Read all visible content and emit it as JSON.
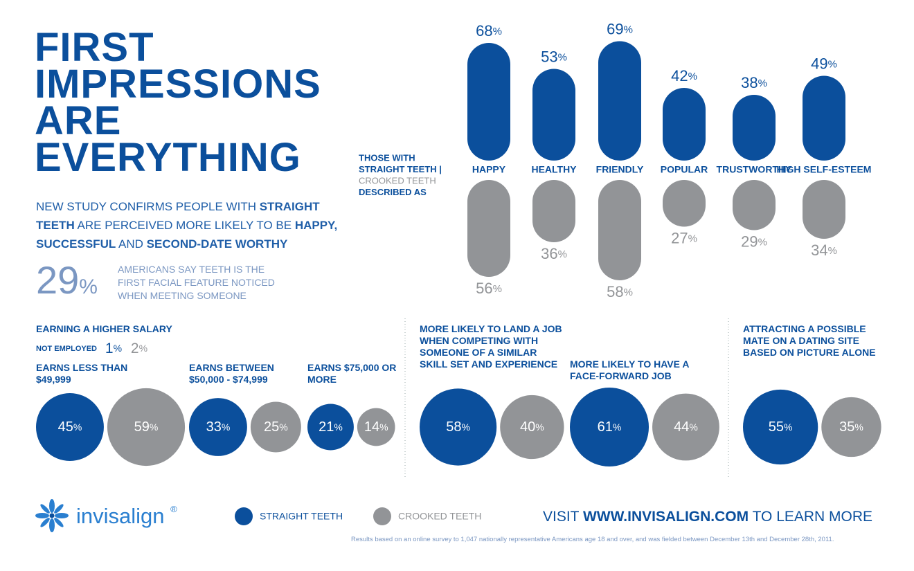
{
  "header": {
    "title_lines": [
      "FIRST",
      "IMPRESSIONS",
      "ARE",
      "EVERYTHING"
    ],
    "subtitle": [
      {
        "text": "NEW STUDY CONFIRMS PEOPLE WITH ",
        "bold": false
      },
      {
        "text": "STRAIGHT TEETH",
        "bold": true
      },
      {
        "text": " ARE PERCEIVED MORE LIKELY TO BE ",
        "bold": false
      },
      {
        "text": "HAPPY, SUCCESSFUL",
        "bold": true
      },
      {
        "text": " AND ",
        "bold": false
      },
      {
        "text": "SECOND-DATE WORTHY",
        "bold": true
      }
    ]
  },
  "stat": {
    "value": 29,
    "unit": "%",
    "text": "AMERICANS SAY TEETH IS THE FIRST FACIAL FEATURE NOTICED WHEN MEETING SOMEONE"
  },
  "chart_data": [
    {
      "type": "bar",
      "unit": "%",
      "side_label": [
        "THOSE WITH",
        "STRAIGHT TEETH |",
        "CROOKED TEETH",
        "DESCRIBED AS"
      ],
      "categories": [
        "HAPPY",
        "HEALTHY",
        "FRIENDLY",
        "POPULAR",
        "TRUSTWORTHY",
        "HIGH SELF-ESTEEM"
      ],
      "series": [
        {
          "name": "STRAIGHT TEETH",
          "color": "#0b4f9c",
          "values": [
            68,
            53,
            69,
            42,
            38,
            49
          ]
        },
        {
          "name": "CROOKED TEETH",
          "color": "#929497",
          "values": [
            56,
            36,
            58,
            27,
            29,
            34
          ]
        }
      ]
    },
    {
      "type": "bubble",
      "unit": "%",
      "title": "EARNING A HIGHER SALARY",
      "not_employed": {
        "label": "NOT EMPLOYED",
        "values": [
          1,
          2
        ]
      },
      "categories": [
        "EARNS LESS THAN $49,999",
        "EARNS BETWEEN $50,000 - $74,999",
        "EARNS $75,000 OR MORE"
      ],
      "series": [
        {
          "color": "#0b4f9c",
          "values": [
            45,
            33,
            21
          ]
        },
        {
          "color": "#929497",
          "values": [
            59,
            25,
            14
          ]
        }
      ]
    },
    {
      "type": "bubble",
      "unit": "%",
      "categories": [
        "MORE LIKELY TO LAND A JOB WHEN COMPETING WITH SOMEONE OF A SIMILAR SKILL SET AND EXPERIENCE",
        "MORE LIKELY TO HAVE A FACE-FORWARD JOB"
      ],
      "series": [
        {
          "color": "#0b4f9c",
          "values": [
            58,
            61
          ]
        },
        {
          "color": "#929497",
          "values": [
            40,
            44
          ]
        }
      ]
    },
    {
      "type": "bubble",
      "unit": "%",
      "categories": [
        "ATTRACTING A POSSIBLE MATE ON A DATING SITE BASED ON PICTURE ALONE"
      ],
      "series": [
        {
          "color": "#0b4f9c",
          "values": [
            55
          ]
        },
        {
          "color": "#929497",
          "values": [
            35
          ]
        }
      ]
    }
  ],
  "footer": {
    "brand": "invisalign",
    "registered": "®",
    "cta": [
      {
        "text": "VISIT ",
        "bold": false
      },
      {
        "text": "WWW.INVISALIGN.COM",
        "bold": true
      },
      {
        "text": " TO LEARN MORE",
        "bold": false
      }
    ],
    "note": "Results based on an online survey to 1,047 nationally representative Americans age 18 and over, and was fielded between December 13th and December 28th, 2011."
  }
}
